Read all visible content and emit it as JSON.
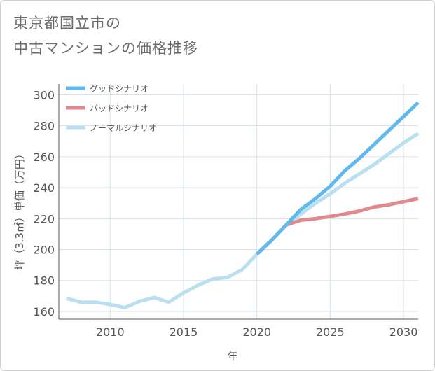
{
  "title": {
    "line1": "東京都国立市の",
    "line2": "中古マンションの価格推移"
  },
  "chart_data": {
    "type": "line",
    "xlabel": "年",
    "ylabel": "坪（3.3㎡）単価（万円）",
    "xlim": [
      2006.5,
      2031
    ],
    "ylim": [
      155,
      307
    ],
    "xticks": [
      2010,
      2015,
      2020,
      2025,
      2030
    ],
    "yticks": [
      160,
      180,
      200,
      220,
      240,
      260,
      280,
      300
    ],
    "grid": true,
    "legend_position": "top-left",
    "series": [
      {
        "name": "グッドシナリオ",
        "color": "#5fb8ee",
        "x": [
          2020,
          2021,
          2022,
          2023,
          2024,
          2025,
          2026,
          2027,
          2028,
          2029,
          2030,
          2031
        ],
        "values": [
          197,
          206,
          216,
          226,
          233,
          241,
          251,
          259,
          268,
          277,
          286,
          295
        ]
      },
      {
        "name": "バッドシナリオ",
        "color": "#e08a8f",
        "x": [
          2020,
          2021,
          2022,
          2023,
          2024,
          2025,
          2026,
          2027,
          2028,
          2029,
          2030,
          2031
        ],
        "values": [
          197,
          206,
          216,
          219,
          220,
          221.5,
          223,
          225,
          227.5,
          229,
          231,
          233
        ]
      },
      {
        "name": "ノーマルシナリオ",
        "color": "#b9dff0",
        "x": [
          2007,
          2008,
          2009,
          2010,
          2011,
          2012,
          2013,
          2014,
          2015,
          2016,
          2017,
          2018,
          2019,
          2020,
          2021,
          2022,
          2023,
          2024,
          2025,
          2026,
          2027,
          2028,
          2029,
          2030,
          2031
        ],
        "values": [
          168.5,
          166,
          166,
          164.5,
          162.5,
          166.5,
          169,
          166,
          172,
          177,
          181,
          182,
          187,
          197,
          206,
          216,
          223,
          230,
          236,
          243,
          249,
          255,
          262,
          269,
          275
        ]
      }
    ]
  }
}
